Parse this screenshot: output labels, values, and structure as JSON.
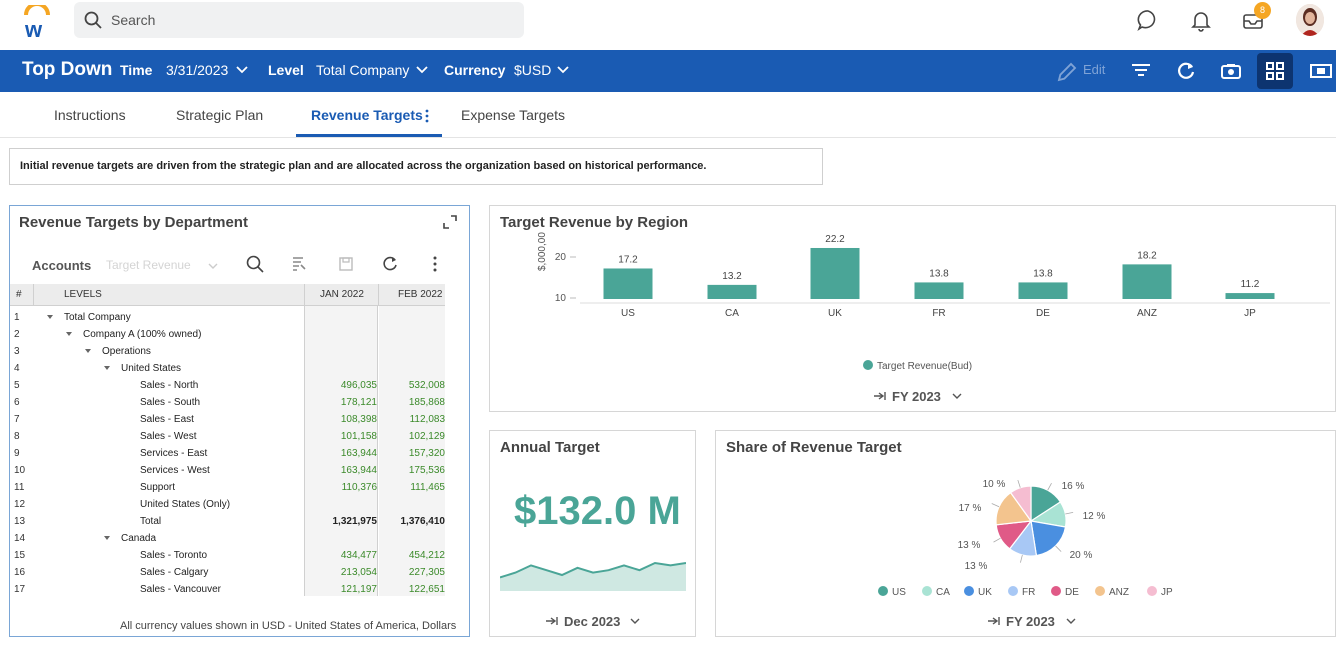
{
  "search": {
    "placeholder": "Search"
  },
  "notifications": {
    "inbox_badge": "8"
  },
  "toolbar": {
    "title": "Top Down",
    "time_label": "Time",
    "time_value": "3/31/2023",
    "level_label": "Level",
    "level_value": "Total Company",
    "currency_label": "Currency",
    "currency_value": "$USD",
    "edit_label": "Edit"
  },
  "tabs": [
    {
      "label": "Instructions"
    },
    {
      "label": "Strategic Plan"
    },
    {
      "label": "Revenue Targets"
    },
    {
      "label": "Expense Targets"
    }
  ],
  "note": "Initial revenue targets are driven from the strategic plan and are allocated across the organization based on historical performance.",
  "dept_panel": {
    "title": "Revenue Targets by Department",
    "accounts_label": "Accounts",
    "accounts_value": "Target Revenue",
    "col_hash": "#",
    "col_levels": "LEVELS",
    "col_jan": "JAN 2022",
    "col_feb": "FEB 2022",
    "footnote": "All currency values shown in USD - United States of America, Dollars",
    "rows": [
      {
        "n": "1",
        "label": "Total Company",
        "jan": "",
        "feb": ""
      },
      {
        "n": "2",
        "label": "Company A (100% owned)",
        "jan": "",
        "feb": ""
      },
      {
        "n": "3",
        "label": "Operations",
        "jan": "",
        "feb": ""
      },
      {
        "n": "4",
        "label": "United States",
        "jan": "",
        "feb": ""
      },
      {
        "n": "5",
        "label": "Sales - North",
        "jan": "496,035",
        "feb": "532,008"
      },
      {
        "n": "6",
        "label": "Sales - South",
        "jan": "178,121",
        "feb": "185,868"
      },
      {
        "n": "7",
        "label": "Sales - East",
        "jan": "108,398",
        "feb": "112,083"
      },
      {
        "n": "8",
        "label": "Sales - West",
        "jan": "101,158",
        "feb": "102,129"
      },
      {
        "n": "9",
        "label": "Services - East",
        "jan": "163,944",
        "feb": "157,320"
      },
      {
        "n": "10",
        "label": "Services - West",
        "jan": "163,944",
        "feb": "175,536"
      },
      {
        "n": "11",
        "label": "Support",
        "jan": "110,376",
        "feb": "111,465"
      },
      {
        "n": "12",
        "label": "United States (Only)",
        "jan": "",
        "feb": ""
      },
      {
        "n": "13",
        "label": "Total",
        "jan": "1,321,975",
        "feb": "1,376,410"
      },
      {
        "n": "14",
        "label": "Canada",
        "jan": "",
        "feb": ""
      },
      {
        "n": "15",
        "label": "Sales - Toronto",
        "jan": "434,477",
        "feb": "454,212"
      },
      {
        "n": "16",
        "label": "Sales - Calgary",
        "jan": "213,054",
        "feb": "227,305"
      },
      {
        "n": "17",
        "label": "Sales - Vancouver",
        "jan": "121,197",
        "feb": "122,651"
      }
    ]
  },
  "region_panel": {
    "title": "Target Revenue by Region",
    "period": "FY 2023"
  },
  "annual_panel": {
    "title": "Annual Target",
    "value": "$132.0 M",
    "period": "Dec 2023"
  },
  "share_panel": {
    "title": "Share of Revenue Target",
    "period": "FY 2023"
  },
  "chart_data": [
    {
      "type": "bar",
      "title": "Target Revenue by Region",
      "ylabel": "$,000,000",
      "ylim": [
        10,
        25
      ],
      "yticks": [
        "10",
        "20",
        "30"
      ],
      "categories": [
        "US",
        "CA",
        "UK",
        "FR",
        "DE",
        "ANZ",
        "JP"
      ],
      "series": [
        {
          "name": "Target Revenue(Bud)",
          "values": [
            17.2,
            13.2,
            22.2,
            13.8,
            13.8,
            18.2,
            11.2
          ],
          "color": "#4aa597"
        }
      ],
      "value_labels": [
        "17.2",
        "13.2",
        "22.2",
        "13.8",
        "13.8",
        "18.2",
        "11.2"
      ],
      "grid": false,
      "legend": "bottom"
    },
    {
      "type": "area",
      "values": [
        4,
        6,
        9,
        7,
        5,
        8,
        6,
        7,
        9,
        7,
        10,
        9,
        10
      ],
      "color": "#4aa597"
    },
    {
      "type": "pie",
      "categories": [
        "US",
        "CA",
        "UK",
        "FR",
        "DE",
        "ANZ",
        "JP"
      ],
      "values": [
        16,
        12,
        20,
        13,
        13,
        17,
        10
      ],
      "labels": [
        "16 %",
        "12 %",
        "20 %",
        "13 %",
        "13 %",
        "17 %",
        "10 %"
      ],
      "colors": [
        "#4aa597",
        "#a9e3d4",
        "#4a8fe0",
        "#a8c8f5",
        "#e05a87",
        "#f3c48e",
        "#f5bdd1"
      ],
      "legend": "bottom"
    }
  ]
}
